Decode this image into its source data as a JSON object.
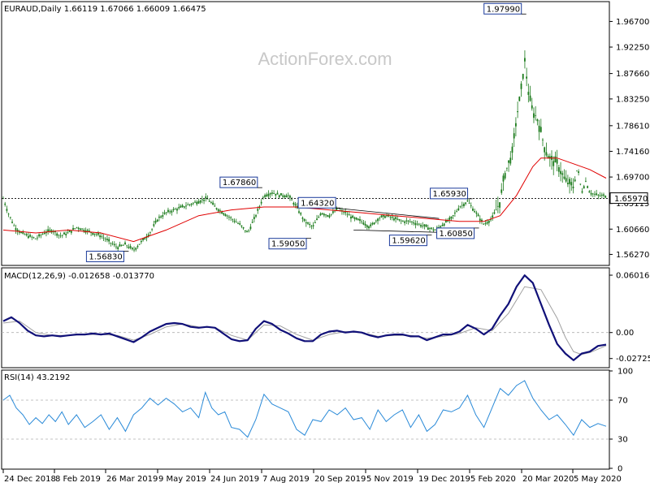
{
  "header": {
    "symbol": "EURAUD,Daily",
    "ohlc": "1.66119 1.67066 1.66009 1.66475"
  },
  "watermark": "ActionForex.com",
  "colors": {
    "candle": "#1a7a1a",
    "ma": "#e00000",
    "macd": "#101078",
    "signal": "#a0a0a0",
    "rsi": "#2a8ad8",
    "grid": "#b0b0b0",
    "frame": "#000000"
  },
  "chart_data": [
    {
      "type": "candlestick",
      "title": "EURAUD,Daily",
      "x_ticks": [
        "24 Dec 2018",
        "8 Feb 2019",
        "26 Mar 2019",
        "9 May 2019",
        "24 Jun 2019",
        "7 Aug 2019",
        "20 Sep 2019",
        "5 Nov 2019",
        "19 Dec 2019",
        "5 Feb 2020",
        "20 Mar 2020",
        "5 May 2020"
      ],
      "y_ticks": [
        "1.96700",
        "1.92250",
        "1.87660",
        "1.83250",
        "1.78610",
        "1.74160",
        "1.69700",
        "1.65115",
        "1.60660",
        "1.56270"
      ],
      "current_price": "1.65970",
      "ylim": [
        1.545,
        2.0
      ],
      "annotations": [
        "1.97990",
        "1.67860",
        "1.64320",
        "1.65930",
        "1.59050",
        "1.59620",
        "1.60850",
        "1.56830"
      ],
      "close_path": [
        [
          0,
          1.66
        ],
        [
          6,
          1.635
        ],
        [
          14,
          1.61
        ],
        [
          22,
          1.6
        ],
        [
          30,
          1.595
        ],
        [
          40,
          1.59
        ],
        [
          50,
          1.6
        ],
        [
          60,
          1.605
        ],
        [
          70,
          1.595
        ],
        [
          80,
          1.6
        ],
        [
          90,
          1.61
        ],
        [
          100,
          1.605
        ],
        [
          110,
          1.6
        ],
        [
          120,
          1.595
        ],
        [
          130,
          1.585
        ],
        [
          140,
          1.575
        ],
        [
          150,
          1.58
        ],
        [
          160,
          1.57
        ],
        [
          170,
          1.585
        ],
        [
          180,
          1.6
        ],
        [
          190,
          1.625
        ],
        [
          200,
          1.635
        ],
        [
          210,
          1.64
        ],
        [
          220,
          1.645
        ],
        [
          230,
          1.65
        ],
        [
          240,
          1.655
        ],
        [
          250,
          1.66
        ],
        [
          260,
          1.645
        ],
        [
          270,
          1.635
        ],
        [
          280,
          1.625
        ],
        [
          290,
          1.615
        ],
        [
          300,
          1.6
        ],
        [
          310,
          1.63
        ],
        [
          320,
          1.665
        ],
        [
          330,
          1.67
        ],
        [
          340,
          1.665
        ],
        [
          350,
          1.665
        ],
        [
          360,
          1.645
        ],
        [
          370,
          1.62
        ],
        [
          380,
          1.61
        ],
        [
          390,
          1.635
        ],
        [
          400,
          1.63
        ],
        [
          410,
          1.64
        ],
        [
          420,
          1.635
        ],
        [
          430,
          1.625
        ],
        [
          440,
          1.62
        ],
        [
          450,
          1.61
        ],
        [
          460,
          1.625
        ],
        [
          470,
          1.63
        ],
        [
          480,
          1.625
        ],
        [
          490,
          1.62
        ],
        [
          500,
          1.62
        ],
        [
          510,
          1.615
        ],
        [
          520,
          1.61
        ],
        [
          530,
          1.605
        ],
        [
          540,
          1.615
        ],
        [
          550,
          1.625
        ],
        [
          560,
          1.645
        ],
        [
          570,
          1.655
        ],
        [
          580,
          1.635
        ],
        [
          590,
          1.615
        ],
        [
          600,
          1.625
        ],
        [
          610,
          1.655
        ],
        [
          615,
          1.7
        ],
        [
          620,
          1.72
        ],
        [
          625,
          1.74
        ],
        [
          630,
          1.8
        ],
        [
          635,
          1.84
        ],
        [
          640,
          1.9
        ],
        [
          645,
          1.84
        ],
        [
          650,
          1.81
        ],
        [
          655,
          1.8
        ],
        [
          660,
          1.775
        ],
        [
          665,
          1.745
        ],
        [
          670,
          1.73
        ],
        [
          680,
          1.72
        ],
        [
          690,
          1.69
        ],
        [
          700,
          1.68
        ],
        [
          705,
          1.715
        ],
        [
          710,
          1.67
        ],
        [
          715,
          1.69
        ],
        [
          720,
          1.67
        ],
        [
          730,
          1.665
        ],
        [
          740,
          1.6645
        ]
      ],
      "ma_path": [
        [
          0,
          1.605
        ],
        [
          40,
          1.6
        ],
        [
          80,
          1.605
        ],
        [
          120,
          1.6
        ],
        [
          160,
          1.585
        ],
        [
          200,
          1.605
        ],
        [
          240,
          1.63
        ],
        [
          280,
          1.64
        ],
        [
          320,
          1.645
        ],
        [
          360,
          1.645
        ],
        [
          400,
          1.64
        ],
        [
          440,
          1.635
        ],
        [
          480,
          1.63
        ],
        [
          520,
          1.625
        ],
        [
          560,
          1.62
        ],
        [
          590,
          1.62
        ],
        [
          610,
          1.63
        ],
        [
          630,
          1.665
        ],
        [
          650,
          1.715
        ],
        [
          660,
          1.73
        ],
        [
          680,
          1.73
        ],
        [
          700,
          1.72
        ],
        [
          720,
          1.71
        ],
        [
          740,
          1.695
        ]
      ],
      "trendlines": [
        {
          "from": [
            395,
            1.645
          ],
          "to": [
            535,
            1.625
          ]
        },
        {
          "from": [
            430,
            1.605
          ],
          "to": [
            560,
            1.6
          ]
        }
      ]
    },
    {
      "type": "line",
      "title": "MACD(12,26,9) -0.012658 -0.013770",
      "y_ticks": [
        "0.060165",
        "0.00",
        "-0.02725"
      ],
      "ylim": [
        -0.036,
        0.067
      ],
      "macd_path": [
        [
          0,
          0.012
        ],
        [
          10,
          0.016
        ],
        [
          20,
          0.01
        ],
        [
          30,
          0.002
        ],
        [
          40,
          -0.003
        ],
        [
          50,
          -0.004
        ],
        [
          60,
          -0.003
        ],
        [
          70,
          -0.004
        ],
        [
          80,
          -0.003
        ],
        [
          90,
          -0.002
        ],
        [
          100,
          -0.002
        ],
        [
          110,
          -0.001
        ],
        [
          120,
          -0.002
        ],
        [
          130,
          -0.001
        ],
        [
          140,
          -0.004
        ],
        [
          150,
          -0.007
        ],
        [
          160,
          -0.01
        ],
        [
          170,
          -0.005
        ],
        [
          180,
          0.001
        ],
        [
          190,
          0.005
        ],
        [
          200,
          0.009
        ],
        [
          210,
          0.01
        ],
        [
          220,
          0.009
        ],
        [
          230,
          0.006
        ],
        [
          240,
          0.005
        ],
        [
          250,
          0.006
        ],
        [
          260,
          0.005
        ],
        [
          270,
          -0.001
        ],
        [
          280,
          -0.007
        ],
        [
          290,
          -0.009
        ],
        [
          300,
          -0.008
        ],
        [
          310,
          0.004
        ],
        [
          320,
          0.012
        ],
        [
          330,
          0.009
        ],
        [
          340,
          0.003
        ],
        [
          350,
          -0.001
        ],
        [
          360,
          -0.006
        ],
        [
          370,
          -0.009
        ],
        [
          380,
          -0.009
        ],
        [
          390,
          -0.002
        ],
        [
          400,
          0.001
        ],
        [
          410,
          0.002
        ],
        [
          420,
          0.0
        ],
        [
          430,
          0.001
        ],
        [
          440,
          0.0
        ],
        [
          450,
          -0.003
        ],
        [
          460,
          -0.005
        ],
        [
          470,
          -0.003
        ],
        [
          480,
          -0.002
        ],
        [
          490,
          -0.002
        ],
        [
          500,
          -0.004
        ],
        [
          510,
          -0.004
        ],
        [
          520,
          -0.008
        ],
        [
          530,
          -0.005
        ],
        [
          540,
          -0.002
        ],
        [
          550,
          -0.002
        ],
        [
          560,
          0.001
        ],
        [
          570,
          0.008
        ],
        [
          580,
          0.004
        ],
        [
          590,
          -0.002
        ],
        [
          600,
          0.004
        ],
        [
          610,
          0.018
        ],
        [
          620,
          0.03
        ],
        [
          630,
          0.048
        ],
        [
          640,
          0.06
        ],
        [
          650,
          0.052
        ],
        [
          660,
          0.03
        ],
        [
          670,
          0.008
        ],
        [
          680,
          -0.012
        ],
        [
          690,
          -0.022
        ],
        [
          700,
          -0.029
        ],
        [
          710,
          -0.022
        ],
        [
          720,
          -0.02
        ],
        [
          730,
          -0.014
        ],
        [
          740,
          -0.0127
        ]
      ],
      "signal_path": [
        [
          0,
          0.01
        ],
        [
          20,
          0.012
        ],
        [
          40,
          0.0
        ],
        [
          60,
          -0.003
        ],
        [
          80,
          -0.003
        ],
        [
          100,
          -0.002
        ],
        [
          120,
          -0.002
        ],
        [
          140,
          -0.003
        ],
        [
          160,
          -0.008
        ],
        [
          180,
          -0.002
        ],
        [
          200,
          0.006
        ],
        [
          220,
          0.009
        ],
        [
          240,
          0.006
        ],
        [
          260,
          0.005
        ],
        [
          280,
          -0.003
        ],
        [
          300,
          -0.008
        ],
        [
          320,
          0.008
        ],
        [
          340,
          0.007
        ],
        [
          360,
          -0.002
        ],
        [
          380,
          -0.008
        ],
        [
          400,
          -0.002
        ],
        [
          420,
          0.001
        ],
        [
          440,
          0.0
        ],
        [
          460,
          -0.004
        ],
        [
          480,
          -0.003
        ],
        [
          500,
          -0.003
        ],
        [
          520,
          -0.006
        ],
        [
          540,
          -0.004
        ],
        [
          560,
          -0.001
        ],
        [
          580,
          0.005
        ],
        [
          600,
          0.002
        ],
        [
          620,
          0.02
        ],
        [
          640,
          0.048
        ],
        [
          660,
          0.045
        ],
        [
          680,
          0.015
        ],
        [
          690,
          -0.005
        ],
        [
          700,
          -0.02
        ],
        [
          710,
          -0.023
        ],
        [
          720,
          -0.021
        ],
        [
          740,
          -0.0138
        ]
      ]
    },
    {
      "type": "line",
      "title": "RSI(14) 43.2192",
      "y_ticks": [
        "100",
        "70",
        "30",
        "0"
      ],
      "ylim": [
        0,
        100
      ],
      "levels": [
        70,
        30
      ],
      "rsi_path": [
        [
          0,
          70
        ],
        [
          8,
          75
        ],
        [
          16,
          62
        ],
        [
          24,
          55
        ],
        [
          32,
          45
        ],
        [
          40,
          52
        ],
        [
          48,
          46
        ],
        [
          56,
          55
        ],
        [
          64,
          48
        ],
        [
          72,
          58
        ],
        [
          80,
          45
        ],
        [
          90,
          55
        ],
        [
          100,
          42
        ],
        [
          110,
          48
        ],
        [
          120,
          55
        ],
        [
          130,
          40
        ],
        [
          140,
          52
        ],
        [
          150,
          38
        ],
        [
          160,
          55
        ],
        [
          170,
          62
        ],
        [
          180,
          72
        ],
        [
          190,
          65
        ],
        [
          200,
          72
        ],
        [
          210,
          66
        ],
        [
          220,
          58
        ],
        [
          230,
          62
        ],
        [
          240,
          52
        ],
        [
          248,
          78
        ],
        [
          256,
          62
        ],
        [
          264,
          55
        ],
        [
          272,
          58
        ],
        [
          280,
          42
        ],
        [
          290,
          40
        ],
        [
          300,
          32
        ],
        [
          310,
          50
        ],
        [
          320,
          76
        ],
        [
          330,
          66
        ],
        [
          340,
          62
        ],
        [
          350,
          58
        ],
        [
          360,
          40
        ],
        [
          370,
          34
        ],
        [
          380,
          50
        ],
        [
          390,
          48
        ],
        [
          400,
          60
        ],
        [
          410,
          55
        ],
        [
          420,
          62
        ],
        [
          430,
          50
        ],
        [
          440,
          52
        ],
        [
          450,
          40
        ],
        [
          460,
          60
        ],
        [
          470,
          48
        ],
        [
          480,
          55
        ],
        [
          490,
          60
        ],
        [
          500,
          42
        ],
        [
          510,
          55
        ],
        [
          520,
          38
        ],
        [
          530,
          45
        ],
        [
          540,
          60
        ],
        [
          550,
          58
        ],
        [
          560,
          62
        ],
        [
          570,
          75
        ],
        [
          580,
          55
        ],
        [
          590,
          42
        ],
        [
          600,
          62
        ],
        [
          610,
          82
        ],
        [
          620,
          75
        ],
        [
          630,
          85
        ],
        [
          640,
          90
        ],
        [
          650,
          72
        ],
        [
          660,
          60
        ],
        [
          670,
          50
        ],
        [
          680,
          55
        ],
        [
          690,
          45
        ],
        [
          700,
          34
        ],
        [
          710,
          50
        ],
        [
          720,
          42
        ],
        [
          730,
          46
        ],
        [
          740,
          43.2
        ]
      ]
    }
  ]
}
